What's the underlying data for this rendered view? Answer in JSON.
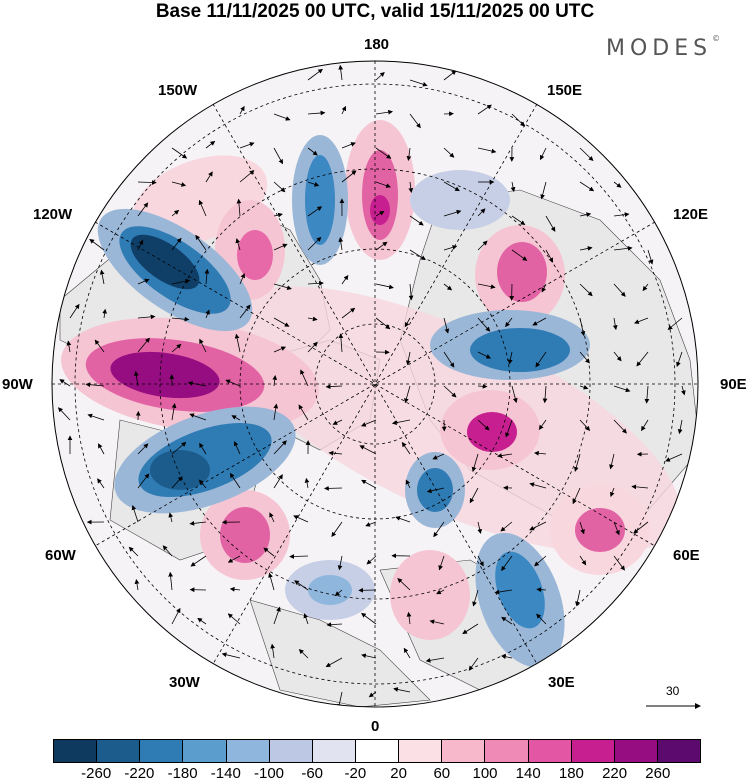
{
  "header": {
    "title": "Base 11/11/2025 00 UTC, valid 15/11/2025 00 UTC",
    "logo": "MODES",
    "logo_mark": "©"
  },
  "map": {
    "projection": "north polar stereographic",
    "longitude_labels": {
      "top": "180",
      "top_right": "150E",
      "right_upper": "120E",
      "right": "90E",
      "right_lower": "60E",
      "bottom_right": "30E",
      "bottom": "0",
      "bottom_left": "30W",
      "left_lower": "60W",
      "left": "90W",
      "left_upper": "120W",
      "top_left": "150W"
    },
    "reference_vector_label": "30",
    "colors": {
      "neg_strong": "#0f3e66",
      "neg_mid": "#3b88c2",
      "neg_weak": "#dde1ee",
      "pos_weak": "#f8d7df",
      "pos_mid": "#e56fa8",
      "pos_strong": "#8c0a7f",
      "land": "#e9e9e9"
    }
  },
  "colorbar": {
    "colors": [
      "#0d3a5e",
      "#1b5c8c",
      "#2f7bb4",
      "#5b9dcc",
      "#8fb6dc",
      "#bcc8e4",
      "#e2e3f0",
      "#ffffff",
      "#fbe0e6",
      "#f7b8cc",
      "#ef89b5",
      "#e356a3",
      "#c81f90",
      "#950d80",
      "#5d0a6e"
    ],
    "tick_labels": [
      "-260",
      "-220",
      "-180",
      "-140",
      "-100",
      "-60",
      "-20",
      "20",
      "60",
      "100",
      "140",
      "180",
      "220",
      "260"
    ]
  }
}
